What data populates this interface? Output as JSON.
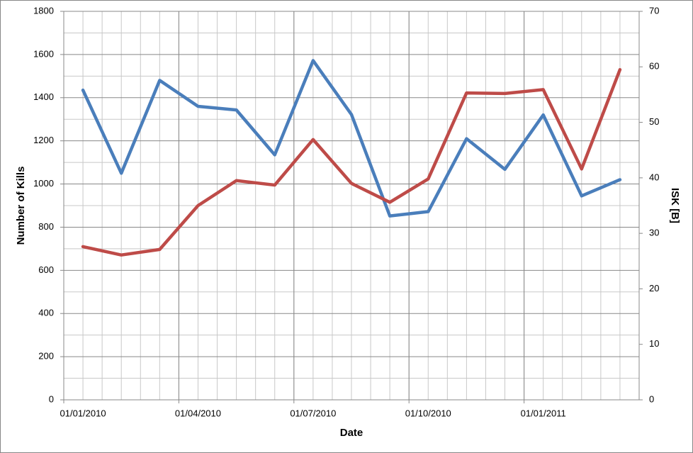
{
  "chart_data": {
    "type": "line",
    "x_label": "Date",
    "y_label": "Number of Kills",
    "y2_label": "ISK [B]",
    "categories": [
      "01/01/2010",
      null,
      null,
      "01/04/2010",
      null,
      null,
      "01/07/2010",
      null,
      null,
      "01/10/2010",
      null,
      null,
      "01/01/2011",
      null,
      null
    ],
    "series": [
      {
        "color": "#4a7ebb",
        "values": [
          1435,
          1050,
          1480,
          1360,
          1343,
          1135,
          1572,
          1322,
          852,
          872,
          1210,
          1068,
          1320,
          945,
          1020
        ]
      },
      {
        "color": "#be4b48",
        "axis": "y2",
        "values": [
          27.6,
          26.1,
          27.1,
          35.0,
          39.5,
          38.7,
          46.9,
          39.0,
          35.6,
          39.8,
          55.3,
          55.2,
          55.9,
          41.6,
          59.5
        ]
      }
    ],
    "ylim": [
      0,
      1800
    ],
    "yticks": [
      0,
      200,
      400,
      600,
      800,
      1000,
      1200,
      1400,
      1600,
      1800
    ],
    "y2lim": [
      0,
      70
    ],
    "y2ticks": [
      0,
      10,
      20,
      30,
      40,
      50,
      60,
      70
    ],
    "grid": true
  }
}
